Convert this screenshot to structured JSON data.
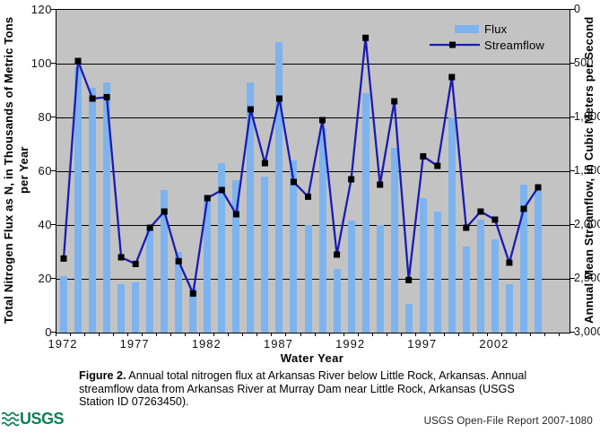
{
  "chart_data": {
    "type": "combo",
    "xlabel": "Water Year",
    "ylabel_left_line1": "Total Nitrogen Flux as N, in Thousands of Metric Tons",
    "ylabel_left_line2": "per Year",
    "ylabel_right": "Annual Mean Streamflow, in Cubic Meters per Second",
    "x_years": [
      1972,
      1973,
      1974,
      1975,
      1976,
      1977,
      1978,
      1979,
      1980,
      1981,
      1982,
      1983,
      1984,
      1985,
      1986,
      1987,
      1988,
      1989,
      1990,
      1991,
      1992,
      1993,
      1994,
      1995,
      1996,
      1997,
      1998,
      1999,
      2000,
      2001,
      2002,
      2003,
      2004,
      2005
    ],
    "xticks": [
      1972,
      1977,
      1982,
      1987,
      1992,
      1997,
      2002
    ],
    "ylim_left": [
      0,
      120
    ],
    "ylim_right": [
      0,
      3000
    ],
    "yticks_left": [
      "120",
      "100",
      "80",
      "60",
      "40",
      "20",
      "0"
    ],
    "yticks_right": [
      "3,000",
      "2,500",
      "2,000",
      "1,500",
      "1,000",
      "500",
      "0"
    ],
    "grid": "horizontal",
    "plot_bg": "#c3c3c3",
    "legend_position": "top-right-inside",
    "series": [
      {
        "name": "Flux",
        "type": "bar",
        "axis": "left",
        "color": "#7db3ee",
        "values": [
          21,
          98.5,
          91,
          93,
          18,
          18.5,
          39,
          53,
          30,
          16.5,
          51,
          63,
          56.5,
          93,
          58,
          108,
          64,
          40,
          76,
          23.5,
          41.5,
          89,
          40,
          68.5,
          10.5,
          50,
          45,
          80,
          32,
          42,
          34.5,
          18,
          55,
          53
        ]
      },
      {
        "name": "Streamflow",
        "type": "line",
        "axis": "right",
        "color": "#1b1bb3",
        "marker": "black-square",
        "marker_color": "#000000",
        "values": [
          688,
          2525,
          2175,
          2188,
          700,
          638,
          975,
          1125,
          663,
          363,
          1250,
          1325,
          1100,
          2075,
          1575,
          2175,
          1400,
          1263,
          1975,
          725,
          1425,
          2740,
          1375,
          2150,
          488,
          1638,
          1550,
          2375,
          975,
          1125,
          1050,
          650,
          1150,
          1350
        ]
      }
    ]
  },
  "legend": {
    "flux_label": "Flux",
    "streamflow_label": "Streamflow"
  },
  "caption": {
    "label": "Figure 2.",
    "lines": [
      "Annual total nitrogen flux at Arkansas River below Little Rock, Arkansas. Annual",
      "streamflow data from Arkansas River at Murray Dam near Little Rock, Arkansas (USGS",
      "Station ID 07263450)."
    ]
  },
  "footer": {
    "logo_text": "USGS",
    "report_text": "USGS Open-File Report 2007-1080"
  }
}
